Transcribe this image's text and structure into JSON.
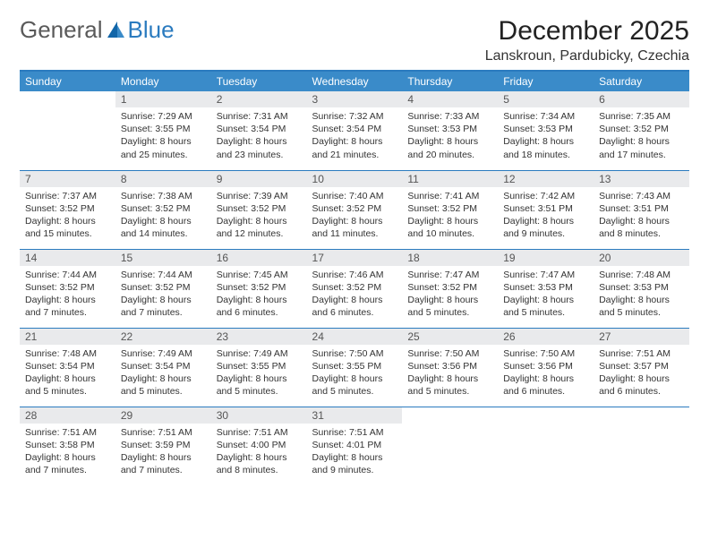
{
  "colors": {
    "header_bg": "#3a8bc9",
    "rule": "#2b7bbf",
    "daynum_bg": "#e9eaec",
    "text": "#333333",
    "logo_blue": "#2b7bbf",
    "logo_gray": "#5a5a5a"
  },
  "logo": {
    "word1": "General",
    "word2": "Blue"
  },
  "title": "December 2025",
  "location": "Lanskroun, Pardubicky, Czechia",
  "weekdays": [
    "Sunday",
    "Monday",
    "Tuesday",
    "Wednesday",
    "Thursday",
    "Friday",
    "Saturday"
  ],
  "weeks": [
    [
      {
        "num": "",
        "sunrise": "",
        "sunset": "",
        "daylight": ""
      },
      {
        "num": "1",
        "sunrise": "Sunrise: 7:29 AM",
        "sunset": "Sunset: 3:55 PM",
        "daylight": "Daylight: 8 hours and 25 minutes."
      },
      {
        "num": "2",
        "sunrise": "Sunrise: 7:31 AM",
        "sunset": "Sunset: 3:54 PM",
        "daylight": "Daylight: 8 hours and 23 minutes."
      },
      {
        "num": "3",
        "sunrise": "Sunrise: 7:32 AM",
        "sunset": "Sunset: 3:54 PM",
        "daylight": "Daylight: 8 hours and 21 minutes."
      },
      {
        "num": "4",
        "sunrise": "Sunrise: 7:33 AM",
        "sunset": "Sunset: 3:53 PM",
        "daylight": "Daylight: 8 hours and 20 minutes."
      },
      {
        "num": "5",
        "sunrise": "Sunrise: 7:34 AM",
        "sunset": "Sunset: 3:53 PM",
        "daylight": "Daylight: 8 hours and 18 minutes."
      },
      {
        "num": "6",
        "sunrise": "Sunrise: 7:35 AM",
        "sunset": "Sunset: 3:52 PM",
        "daylight": "Daylight: 8 hours and 17 minutes."
      }
    ],
    [
      {
        "num": "7",
        "sunrise": "Sunrise: 7:37 AM",
        "sunset": "Sunset: 3:52 PM",
        "daylight": "Daylight: 8 hours and 15 minutes."
      },
      {
        "num": "8",
        "sunrise": "Sunrise: 7:38 AM",
        "sunset": "Sunset: 3:52 PM",
        "daylight": "Daylight: 8 hours and 14 minutes."
      },
      {
        "num": "9",
        "sunrise": "Sunrise: 7:39 AM",
        "sunset": "Sunset: 3:52 PM",
        "daylight": "Daylight: 8 hours and 12 minutes."
      },
      {
        "num": "10",
        "sunrise": "Sunrise: 7:40 AM",
        "sunset": "Sunset: 3:52 PM",
        "daylight": "Daylight: 8 hours and 11 minutes."
      },
      {
        "num": "11",
        "sunrise": "Sunrise: 7:41 AM",
        "sunset": "Sunset: 3:52 PM",
        "daylight": "Daylight: 8 hours and 10 minutes."
      },
      {
        "num": "12",
        "sunrise": "Sunrise: 7:42 AM",
        "sunset": "Sunset: 3:51 PM",
        "daylight": "Daylight: 8 hours and 9 minutes."
      },
      {
        "num": "13",
        "sunrise": "Sunrise: 7:43 AM",
        "sunset": "Sunset: 3:51 PM",
        "daylight": "Daylight: 8 hours and 8 minutes."
      }
    ],
    [
      {
        "num": "14",
        "sunrise": "Sunrise: 7:44 AM",
        "sunset": "Sunset: 3:52 PM",
        "daylight": "Daylight: 8 hours and 7 minutes."
      },
      {
        "num": "15",
        "sunrise": "Sunrise: 7:44 AM",
        "sunset": "Sunset: 3:52 PM",
        "daylight": "Daylight: 8 hours and 7 minutes."
      },
      {
        "num": "16",
        "sunrise": "Sunrise: 7:45 AM",
        "sunset": "Sunset: 3:52 PM",
        "daylight": "Daylight: 8 hours and 6 minutes."
      },
      {
        "num": "17",
        "sunrise": "Sunrise: 7:46 AM",
        "sunset": "Sunset: 3:52 PM",
        "daylight": "Daylight: 8 hours and 6 minutes."
      },
      {
        "num": "18",
        "sunrise": "Sunrise: 7:47 AM",
        "sunset": "Sunset: 3:52 PM",
        "daylight": "Daylight: 8 hours and 5 minutes."
      },
      {
        "num": "19",
        "sunrise": "Sunrise: 7:47 AM",
        "sunset": "Sunset: 3:53 PM",
        "daylight": "Daylight: 8 hours and 5 minutes."
      },
      {
        "num": "20",
        "sunrise": "Sunrise: 7:48 AM",
        "sunset": "Sunset: 3:53 PM",
        "daylight": "Daylight: 8 hours and 5 minutes."
      }
    ],
    [
      {
        "num": "21",
        "sunrise": "Sunrise: 7:48 AM",
        "sunset": "Sunset: 3:54 PM",
        "daylight": "Daylight: 8 hours and 5 minutes."
      },
      {
        "num": "22",
        "sunrise": "Sunrise: 7:49 AM",
        "sunset": "Sunset: 3:54 PM",
        "daylight": "Daylight: 8 hours and 5 minutes."
      },
      {
        "num": "23",
        "sunrise": "Sunrise: 7:49 AM",
        "sunset": "Sunset: 3:55 PM",
        "daylight": "Daylight: 8 hours and 5 minutes."
      },
      {
        "num": "24",
        "sunrise": "Sunrise: 7:50 AM",
        "sunset": "Sunset: 3:55 PM",
        "daylight": "Daylight: 8 hours and 5 minutes."
      },
      {
        "num": "25",
        "sunrise": "Sunrise: 7:50 AM",
        "sunset": "Sunset: 3:56 PM",
        "daylight": "Daylight: 8 hours and 5 minutes."
      },
      {
        "num": "26",
        "sunrise": "Sunrise: 7:50 AM",
        "sunset": "Sunset: 3:56 PM",
        "daylight": "Daylight: 8 hours and 6 minutes."
      },
      {
        "num": "27",
        "sunrise": "Sunrise: 7:51 AM",
        "sunset": "Sunset: 3:57 PM",
        "daylight": "Daylight: 8 hours and 6 minutes."
      }
    ],
    [
      {
        "num": "28",
        "sunrise": "Sunrise: 7:51 AM",
        "sunset": "Sunset: 3:58 PM",
        "daylight": "Daylight: 8 hours and 7 minutes."
      },
      {
        "num": "29",
        "sunrise": "Sunrise: 7:51 AM",
        "sunset": "Sunset: 3:59 PM",
        "daylight": "Daylight: 8 hours and 7 minutes."
      },
      {
        "num": "30",
        "sunrise": "Sunrise: 7:51 AM",
        "sunset": "Sunset: 4:00 PM",
        "daylight": "Daylight: 8 hours and 8 minutes."
      },
      {
        "num": "31",
        "sunrise": "Sunrise: 7:51 AM",
        "sunset": "Sunset: 4:01 PM",
        "daylight": "Daylight: 8 hours and 9 minutes."
      },
      {
        "num": "",
        "sunrise": "",
        "sunset": "",
        "daylight": ""
      },
      {
        "num": "",
        "sunrise": "",
        "sunset": "",
        "daylight": ""
      },
      {
        "num": "",
        "sunrise": "",
        "sunset": "",
        "daylight": ""
      }
    ]
  ]
}
